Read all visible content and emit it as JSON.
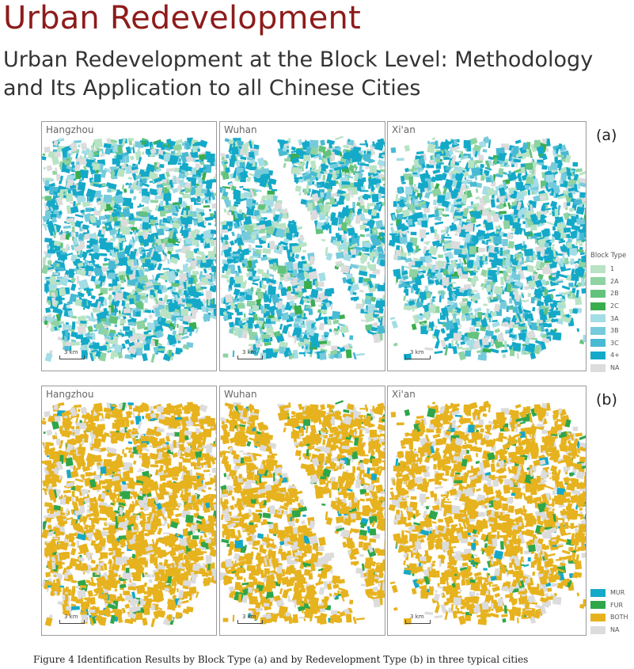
{
  "page": {
    "site_title": "Urban Redevelopment",
    "subtitle": "Urban Redevelopment at the Block Level: Methodology and Its Application to all Chinese Cities"
  },
  "figure": {
    "caption": "Figure 4  Identification Results by Block Type (a) and by Redevelopment Type (b) in three typical cities",
    "panel_a_letter": "(a)",
    "panel_b_letter": "(b)",
    "cities": [
      "Hangzhou",
      "Wuhan",
      "Xi'an"
    ],
    "scale_label": "3 km"
  },
  "legend_a": {
    "title": "Block Type",
    "items": [
      {
        "label": "1",
        "color": "#b8e3c4"
      },
      {
        "label": "2A",
        "color": "#8fd3a2"
      },
      {
        "label": "2B",
        "color": "#63c27c"
      },
      {
        "label": "2C",
        "color": "#3aad4e"
      },
      {
        "label": "3A",
        "color": "#a3dde5"
      },
      {
        "label": "3B",
        "color": "#75cbdc"
      },
      {
        "label": "3C",
        "color": "#48bad3"
      },
      {
        "label": "4+",
        "color": "#14a9c9"
      },
      {
        "label": "NA",
        "color": "#dcdcdc"
      }
    ]
  },
  "legend_b": {
    "items": [
      {
        "label": "MUR",
        "color": "#14a9c9"
      },
      {
        "label": "FUR",
        "color": "#2ea64a"
      },
      {
        "label": "BOTH",
        "color": "#e6b21e"
      },
      {
        "label": "NA",
        "color": "#dcdcdc"
      }
    ]
  }
}
